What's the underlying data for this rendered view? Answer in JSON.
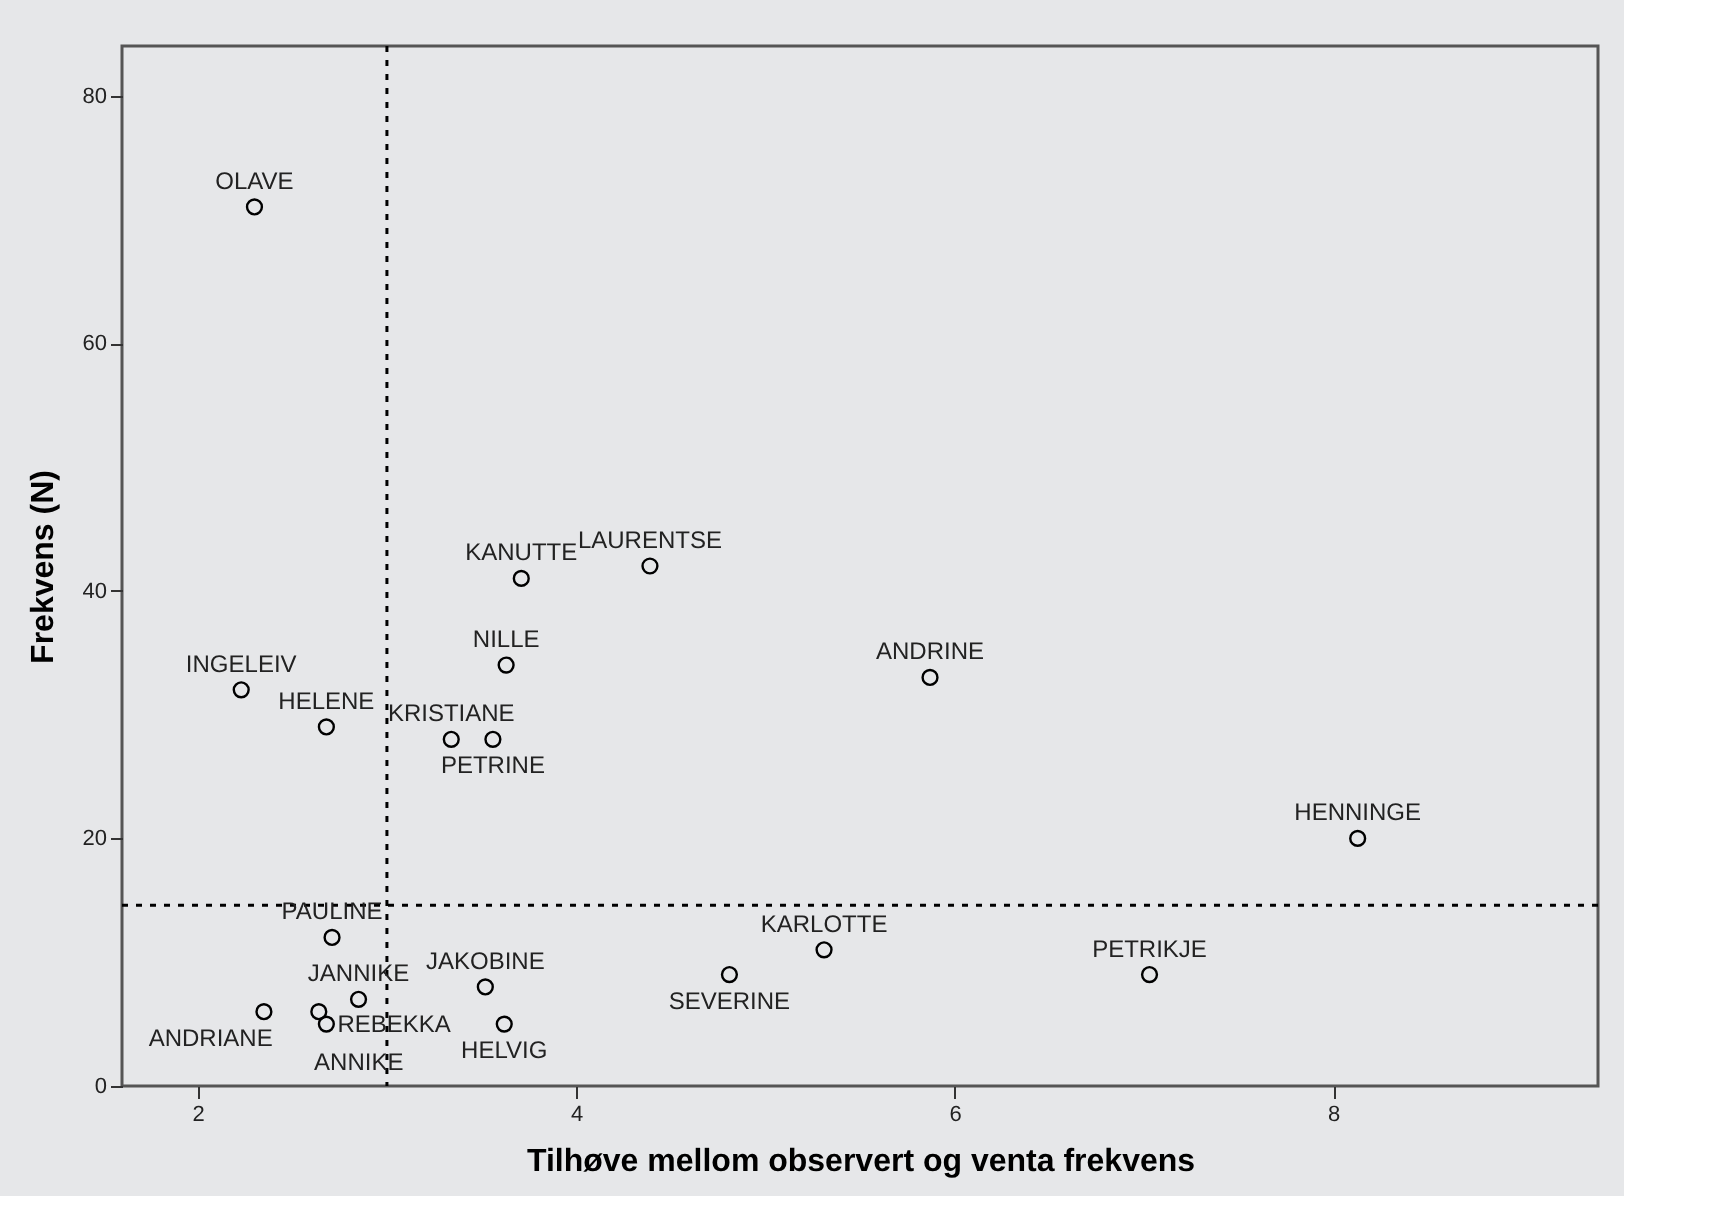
{
  "chart_data": {
    "type": "scatter",
    "xlabel": "Tilhøve mellom observert og venta frekvens",
    "ylabel": "Frekvens (N)",
    "xlim": [
      1.6,
      9.4
    ],
    "ylim": [
      0,
      84
    ],
    "xticks": [
      2,
      4,
      6,
      8
    ],
    "yticks": [
      0,
      20,
      40,
      60,
      80
    ],
    "grid": false,
    "marker": "circle",
    "series": [
      {
        "color": "#000000",
        "x": [
          2.3,
          3.71,
          4.39,
          3.63,
          2.23,
          2.68,
          3.34,
          3.56,
          5.87,
          8.13,
          2.71,
          5.31,
          3.52,
          2.85,
          2.64,
          4.81,
          7.03,
          2.35,
          2.68,
          3.62
        ],
        "values": [
          71,
          41,
          42,
          34,
          32,
          29,
          28,
          28,
          33,
          20,
          12,
          11,
          8,
          7,
          6,
          9,
          9,
          6,
          5,
          5
        ]
      }
    ],
    "ref_lines": [
      {
        "axis": "x",
        "value": 3.0,
        "line_style": "dotted",
        "color": "#000000"
      },
      {
        "axis": "y",
        "value": 14.6,
        "line_style": "dotted",
        "color": "#000000"
      }
    ],
    "annotations": [
      {
        "text": "OLAVE",
        "x": 2.3,
        "y": 71
      },
      {
        "text": "KANUTTE",
        "x": 3.71,
        "y": 41
      },
      {
        "text": "LAURENTSE",
        "x": 4.39,
        "y": 42
      },
      {
        "text": "NILLE",
        "x": 3.63,
        "y": 34
      },
      {
        "text": "INGELEIV",
        "x": 2.23,
        "y": 32
      },
      {
        "text": "HELENE",
        "x": 2.68,
        "y": 29
      },
      {
        "text": "KRISTIANE",
        "x": 3.34,
        "y": 28
      },
      {
        "text": "PETRINE",
        "x": 3.56,
        "y": 28
      },
      {
        "text": "ANDRINE",
        "x": 5.87,
        "y": 33
      },
      {
        "text": "HENNINGE",
        "x": 8.13,
        "y": 20
      },
      {
        "text": "PAULINE",
        "x": 2.71,
        "y": 12
      },
      {
        "text": "KARLOTTE",
        "x": 5.31,
        "y": 11
      },
      {
        "text": "JAKOBINE",
        "x": 3.52,
        "y": 8
      },
      {
        "text": "JANNIKE",
        "x": 2.85,
        "y": 7
      },
      {
        "text": "ANNIKE",
        "x": 2.64,
        "y": 6
      },
      {
        "text": "SEVERINE",
        "x": 4.81,
        "y": 9
      },
      {
        "text": "PETRIKJE",
        "x": 7.03,
        "y": 9
      },
      {
        "text": "ANDRIANE",
        "x": 2.35,
        "y": 6
      },
      {
        "text": "REBEKKA",
        "x": 2.68,
        "y": 5
      },
      {
        "text": "HELVIG",
        "x": 3.62,
        "y": 5
      }
    ]
  }
}
